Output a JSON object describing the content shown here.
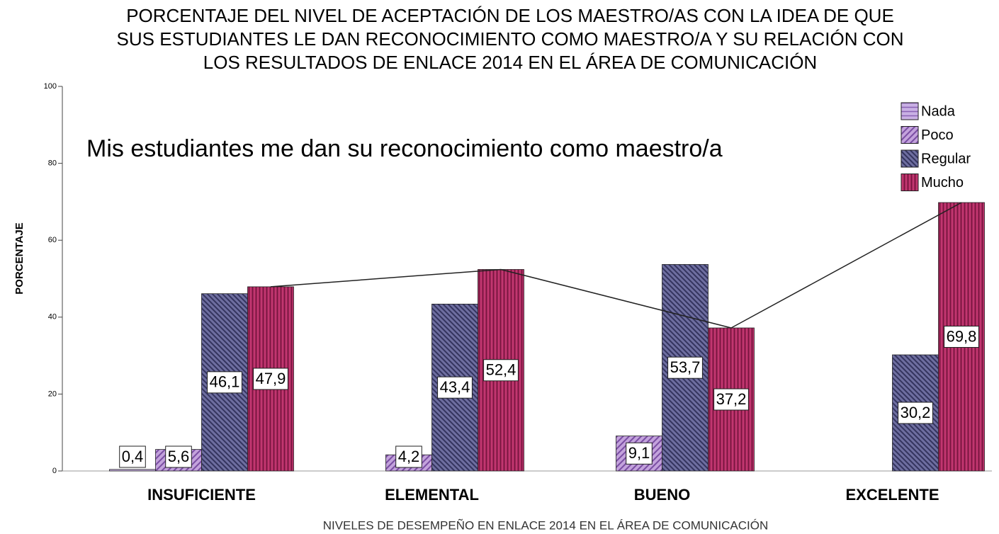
{
  "chart_data": {
    "type": "bar",
    "title": [
      "PORCENTAJE DEL NIVEL DE ACEPTACIÓN DE LOS MAESTRO/AS CON LA IDEA DE QUE",
      "SUS ESTUDIANTES LE DAN RECONOCIMIENTO COMO MAESTRO/A Y SU RELACIÓN CON",
      "LOS RESULTADOS DE ENLACE 2014 EN EL ÁREA DE COMUNICACIÓN"
    ],
    "annotation": "Mis estudiantes me dan su reconocimiento como maestro/a",
    "x_label": "NIVELES DE DESEMPEÑO EN ENLACE 2014 EN EL ÁREA DE COMUNICACIÓN",
    "y_label": "PORCENTAJE",
    "categories": [
      "INSUFICIENTE",
      "ELEMENTAL",
      "BUENO",
      "EXCELENTE"
    ],
    "series": [
      {
        "name": "Nada",
        "color": "#b595d8",
        "values": [
          0.4,
          null,
          null,
          null
        ],
        "value_labels": [
          "0,4",
          null,
          null,
          null
        ]
      },
      {
        "name": "Poco",
        "color": "#9b6cbf",
        "values": [
          5.6,
          4.2,
          9.1,
          null
        ],
        "value_labels": [
          "5,6",
          "4,2",
          "9,1",
          null
        ]
      },
      {
        "name": "Regular",
        "color": "#4b4b7e",
        "values": [
          46.1,
          43.4,
          53.7,
          30.2
        ],
        "value_labels": [
          "46,1",
          "43,4",
          "53,7",
          "30,2"
        ]
      },
      {
        "name": "Mucho",
        "color": "#a3245c",
        "values": [
          47.9,
          52.4,
          37.2,
          69.8
        ],
        "value_labels": [
          "47,9",
          "52,4",
          "37,2",
          "69,8"
        ]
      }
    ],
    "ylim": [
      0,
      100
    ],
    "yticks": [
      0,
      20,
      40,
      60,
      80,
      100
    ],
    "legend": "top-right"
  }
}
